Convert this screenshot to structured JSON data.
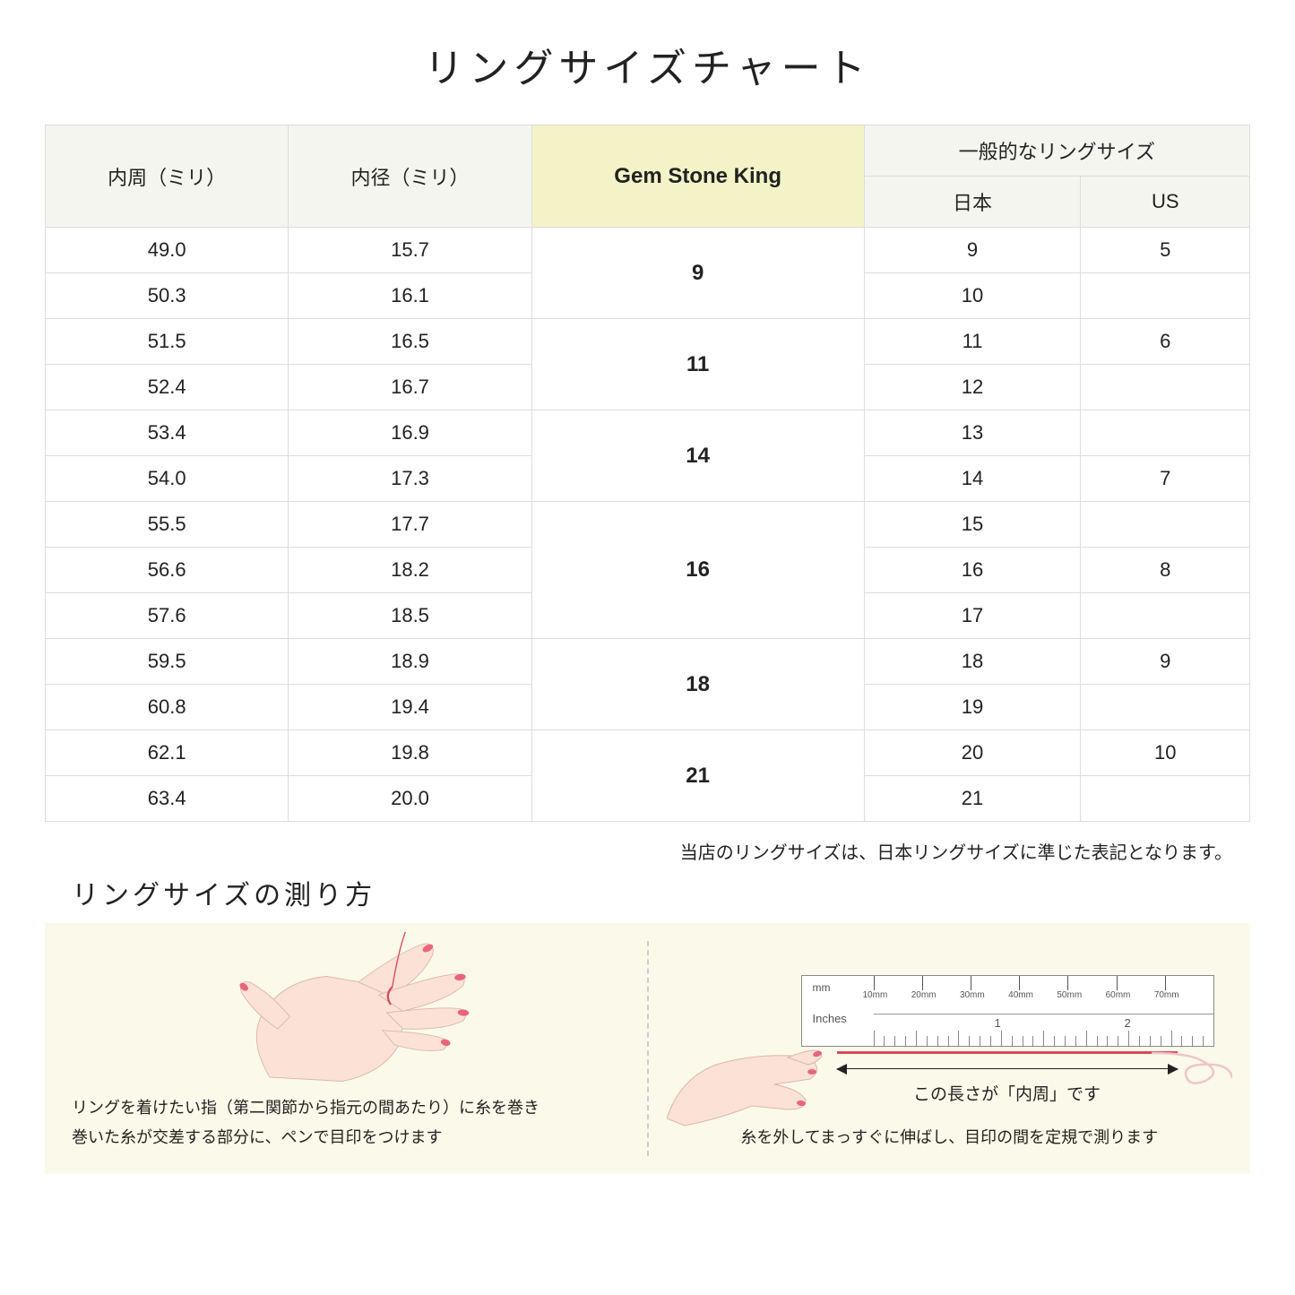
{
  "title": "リングサイズチャート",
  "table": {
    "headers": {
      "circumference": "内周（ミリ）",
      "diameter": "内径（ミリ）",
      "gsk": "Gem Stone King",
      "common_group": "一般的なリングサイズ",
      "japan": "日本",
      "us": "US"
    },
    "groups": [
      {
        "gsk": "9",
        "rows": [
          {
            "c": "49.0",
            "d": "15.7",
            "jp": "9",
            "us": "5"
          },
          {
            "c": "50.3",
            "d": "16.1",
            "jp": "10",
            "us": ""
          }
        ]
      },
      {
        "gsk": "11",
        "rows": [
          {
            "c": "51.5",
            "d": "16.5",
            "jp": "11",
            "us": "6"
          },
          {
            "c": "52.4",
            "d": "16.7",
            "jp": "12",
            "us": ""
          }
        ]
      },
      {
        "gsk": "14",
        "rows": [
          {
            "c": "53.4",
            "d": "16.9",
            "jp": "13",
            "us": ""
          },
          {
            "c": "54.0",
            "d": "17.3",
            "jp": "14",
            "us": "7"
          }
        ]
      },
      {
        "gsk": "16",
        "rows": [
          {
            "c": "55.5",
            "d": "17.7",
            "jp": "15",
            "us": ""
          },
          {
            "c": "56.6",
            "d": "18.2",
            "jp": "16",
            "us": "8"
          },
          {
            "c": "57.6",
            "d": "18.5",
            "jp": "17",
            "us": ""
          }
        ]
      },
      {
        "gsk": "18",
        "rows": [
          {
            "c": "59.5",
            "d": "18.9",
            "jp": "18",
            "us": "9"
          },
          {
            "c": "60.8",
            "d": "19.4",
            "jp": "19",
            "us": ""
          }
        ]
      },
      {
        "gsk": "21",
        "rows": [
          {
            "c": "62.1",
            "d": "19.8",
            "jp": "20",
            "us": "10"
          },
          {
            "c": "63.4",
            "d": "20.0",
            "jp": "21",
            "us": ""
          }
        ]
      }
    ]
  },
  "note": "当店のリングサイズは、日本リングサイズに準じた表記となります。",
  "howto_title": "リングサイズの測り方",
  "instruction_left_1": "リングを着けたい指（第二関節から指元の間あたり）に糸を巻き",
  "instruction_left_2": "巻いた糸が交差する部分に、ペンで目印をつけます",
  "instruction_right": "糸を外してまっすぐに伸ばし、目印の間を定規で測ります",
  "arrow_label": "この長さが「内周」です",
  "ruler": {
    "mm_label": "mm",
    "mm_ticks": [
      "10mm",
      "20mm",
      "30mm",
      "40mm",
      "50mm",
      "60mm",
      "70mm"
    ],
    "inches_label": "Inches",
    "inch_marks": [
      "1",
      "2"
    ]
  },
  "colors": {
    "header_bg": "#f5f5f0",
    "gsk_bg": "#f4f3c8",
    "border": "#dddddd",
    "panel_bg": "#fbf9ea",
    "thread": "#d94a5a",
    "skin": "#fbe1d6",
    "nail": "#e8657e"
  }
}
